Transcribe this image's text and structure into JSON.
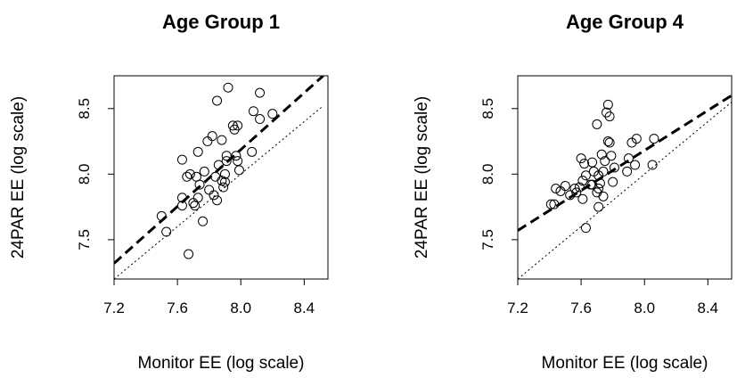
{
  "chart_data": [
    {
      "type": "scatter",
      "title": "Age Group 1",
      "xlabel": "Monitor EE (log scale)",
      "ylabel": "24PAR EE (log scale)",
      "xlim": [
        7.2,
        8.55
      ],
      "ylim": [
        7.2,
        8.75
      ],
      "x_ticks": [
        7.2,
        7.6,
        8.0,
        8.4
      ],
      "x_tick_labels": [
        "7.2",
        "7.6",
        "8.0",
        "8.4"
      ],
      "y_ticks": [
        7.5,
        8.0,
        8.5
      ],
      "y_tick_labels": [
        "7.5",
        "8.0",
        "8.5"
      ],
      "grid": false,
      "points": [
        {
          "x": 7.5,
          "y": 7.68
        },
        {
          "x": 7.53,
          "y": 7.56
        },
        {
          "x": 7.63,
          "y": 7.82
        },
        {
          "x": 7.63,
          "y": 7.76
        },
        {
          "x": 7.63,
          "y": 8.11
        },
        {
          "x": 7.66,
          "y": 7.98
        },
        {
          "x": 7.67,
          "y": 7.39
        },
        {
          "x": 7.68,
          "y": 8.0
        },
        {
          "x": 7.7,
          "y": 7.78
        },
        {
          "x": 7.71,
          "y": 7.76
        },
        {
          "x": 7.72,
          "y": 7.98
        },
        {
          "x": 7.73,
          "y": 7.82
        },
        {
          "x": 7.73,
          "y": 8.17
        },
        {
          "x": 7.74,
          "y": 7.92
        },
        {
          "x": 7.76,
          "y": 7.64
        },
        {
          "x": 7.77,
          "y": 8.02
        },
        {
          "x": 7.79,
          "y": 8.25
        },
        {
          "x": 7.8,
          "y": 7.88
        },
        {
          "x": 7.82,
          "y": 8.29
        },
        {
          "x": 7.83,
          "y": 7.84
        },
        {
          "x": 7.84,
          "y": 7.98
        },
        {
          "x": 7.85,
          "y": 8.56
        },
        {
          "x": 7.85,
          "y": 7.8
        },
        {
          "x": 7.86,
          "y": 8.07
        },
        {
          "x": 7.88,
          "y": 7.95
        },
        {
          "x": 7.88,
          "y": 8.26
        },
        {
          "x": 7.89,
          "y": 7.9
        },
        {
          "x": 7.9,
          "y": 8.0
        },
        {
          "x": 7.9,
          "y": 7.94
        },
        {
          "x": 7.91,
          "y": 8.14
        },
        {
          "x": 7.91,
          "y": 8.1
        },
        {
          "x": 7.92,
          "y": 8.66
        },
        {
          "x": 7.95,
          "y": 8.37
        },
        {
          "x": 7.96,
          "y": 8.34
        },
        {
          "x": 7.97,
          "y": 8.14
        },
        {
          "x": 7.98,
          "y": 8.37
        },
        {
          "x": 7.98,
          "y": 8.1
        },
        {
          "x": 7.99,
          "y": 8.03
        },
        {
          "x": 8.07,
          "y": 8.17
        },
        {
          "x": 8.08,
          "y": 8.48
        },
        {
          "x": 8.12,
          "y": 8.62
        },
        {
          "x": 8.12,
          "y": 8.42
        },
        {
          "x": 8.2,
          "y": 8.46
        }
      ],
      "fit_line": {
        "x": [
          7.2,
          8.52
        ],
        "y": [
          7.32,
          8.75
        ]
      },
      "identity_line": {
        "x": [
          7.2,
          8.52
        ],
        "y": [
          7.2,
          8.52
        ]
      }
    },
    {
      "type": "scatter",
      "title": "Age Group 4",
      "xlabel": "Monitor EE (log scale)",
      "ylabel": "24PAR EE (log scale)",
      "xlim": [
        7.2,
        8.55
      ],
      "ylim": [
        7.2,
        8.75
      ],
      "x_ticks": [
        7.2,
        7.6,
        8.0,
        8.4
      ],
      "x_tick_labels": [
        "7.2",
        "7.6",
        "8.0",
        "8.4"
      ],
      "y_ticks": [
        7.5,
        8.0,
        8.5
      ],
      "y_tick_labels": [
        "7.5",
        "8.0",
        "8.5"
      ],
      "grid": false,
      "points": [
        {
          "x": 7.41,
          "y": 7.77
        },
        {
          "x": 7.43,
          "y": 7.77
        },
        {
          "x": 7.44,
          "y": 7.89
        },
        {
          "x": 7.47,
          "y": 7.87
        },
        {
          "x": 7.5,
          "y": 7.91
        },
        {
          "x": 7.53,
          "y": 7.84
        },
        {
          "x": 7.56,
          "y": 7.89
        },
        {
          "x": 7.57,
          "y": 7.86
        },
        {
          "x": 7.59,
          "y": 7.9
        },
        {
          "x": 7.6,
          "y": 8.12
        },
        {
          "x": 7.61,
          "y": 7.95
        },
        {
          "x": 7.61,
          "y": 7.81
        },
        {
          "x": 7.62,
          "y": 8.08
        },
        {
          "x": 7.63,
          "y": 7.59
        },
        {
          "x": 7.63,
          "y": 7.99
        },
        {
          "x": 7.66,
          "y": 7.92
        },
        {
          "x": 7.67,
          "y": 8.09
        },
        {
          "x": 7.67,
          "y": 7.92
        },
        {
          "x": 7.68,
          "y": 8.02
        },
        {
          "x": 7.7,
          "y": 7.86
        },
        {
          "x": 7.7,
          "y": 8.38
        },
        {
          "x": 7.71,
          "y": 7.75
        },
        {
          "x": 7.71,
          "y": 7.89
        },
        {
          "x": 7.71,
          "y": 7.99
        },
        {
          "x": 7.72,
          "y": 7.93
        },
        {
          "x": 7.73,
          "y": 8.15
        },
        {
          "x": 7.74,
          "y": 7.83
        },
        {
          "x": 7.74,
          "y": 8.02
        },
        {
          "x": 7.75,
          "y": 8.1
        },
        {
          "x": 7.76,
          "y": 8.47
        },
        {
          "x": 7.77,
          "y": 8.53
        },
        {
          "x": 7.77,
          "y": 8.25
        },
        {
          "x": 7.78,
          "y": 8.44
        },
        {
          "x": 7.78,
          "y": 8.24
        },
        {
          "x": 7.79,
          "y": 8.14
        },
        {
          "x": 7.8,
          "y": 7.94
        },
        {
          "x": 7.81,
          "y": 8.05
        },
        {
          "x": 7.89,
          "y": 8.02
        },
        {
          "x": 7.9,
          "y": 8.12
        },
        {
          "x": 7.92,
          "y": 8.24
        },
        {
          "x": 7.94,
          "y": 8.07
        },
        {
          "x": 7.95,
          "y": 8.27
        },
        {
          "x": 8.05,
          "y": 8.07
        },
        {
          "x": 8.06,
          "y": 8.27
        }
      ],
      "fit_line": {
        "x": [
          7.2,
          8.55
        ],
        "y": [
          7.57,
          8.6
        ]
      },
      "identity_line": {
        "x": [
          7.2,
          8.55
        ],
        "y": [
          7.2,
          8.55
        ]
      }
    }
  ]
}
